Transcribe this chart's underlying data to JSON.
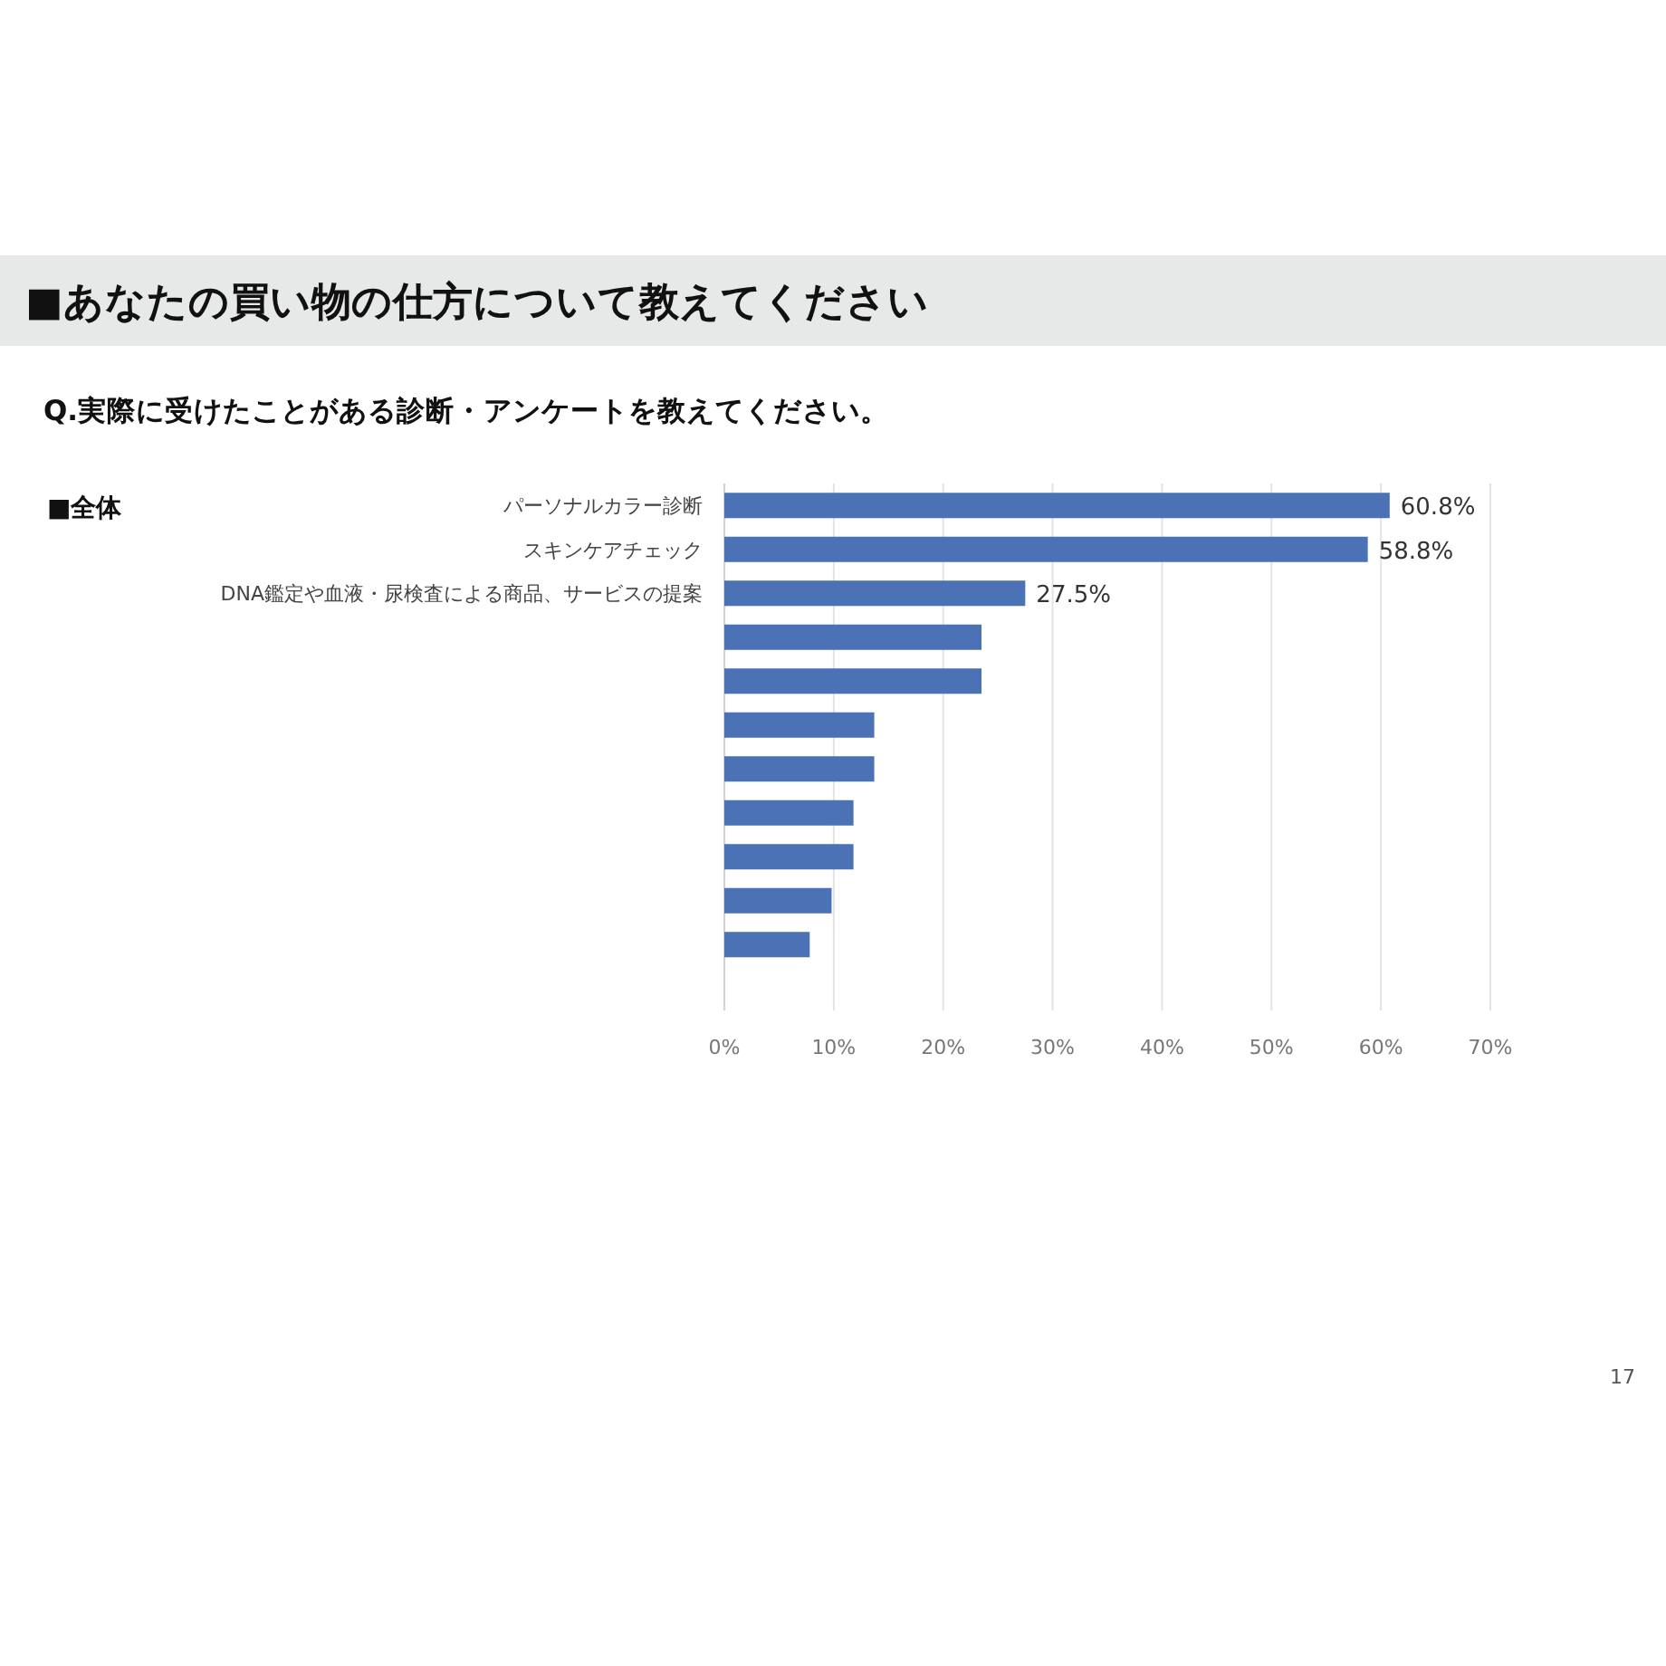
{
  "chart_data": {
    "type": "bar",
    "orientation": "horizontal",
    "title": "■あなたの買い物の仕方について教えてください",
    "subtitle": "Q.実際に受けたことがある診断・アンケートを教えてください。",
    "categories": [
      "パーソナルカラー診断",
      "スキンケアチェック",
      "DNA鑑定や血液・尿検査による商品、サービスの提案",
      null,
      null,
      null,
      null,
      null,
      null,
      null,
      null,
      null
    ],
    "values": [
      60.8,
      58.8,
      27.5,
      23.5,
      23.5,
      13.7,
      13.7,
      11.8,
      11.8,
      9.8,
      7.8,
      0
    ],
    "color": "#4a72b4",
    "value_labels": [
      "60.8%",
      "58.8%",
      "27.5%",
      null,
      null,
      null,
      null,
      null,
      null,
      null,
      null,
      null
    ],
    "xlim": [
      0,
      70
    ],
    "xticks": [
      {
        "value": 0,
        "label": "0%"
      },
      {
        "value": 10,
        "label": "10%"
      },
      {
        "value": 20,
        "label": "20%"
      },
      {
        "value": 30,
        "label": "30%"
      },
      {
        "value": 40,
        "label": "40%"
      },
      {
        "value": 50,
        "label": "50%"
      },
      {
        "value": 60,
        "label": "60%"
      },
      {
        "value": 70,
        "label": "70%"
      }
    ],
    "grid": "x",
    "annotations": [
      "■全体",
      "17"
    ]
  }
}
